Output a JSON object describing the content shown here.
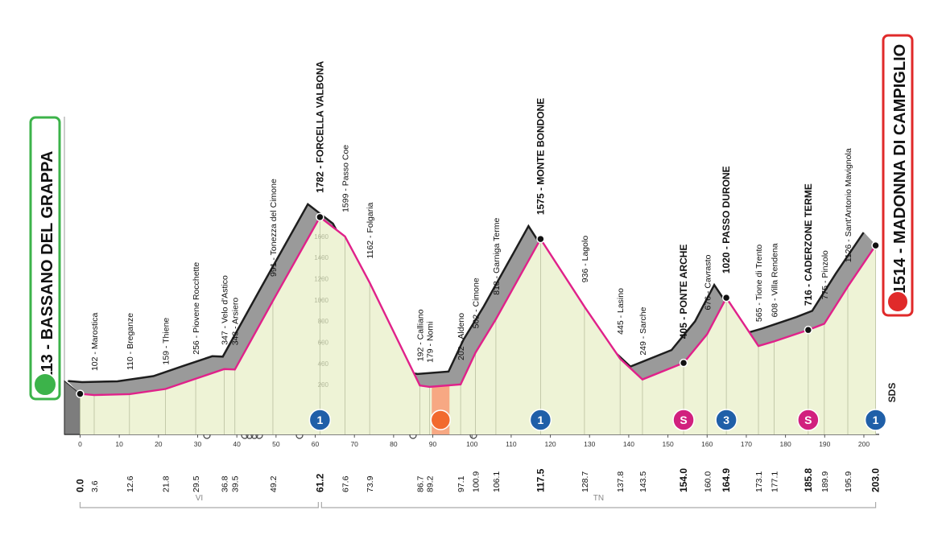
{
  "chart_data": {
    "type": "area",
    "x": [
      {
        "value": 0,
        "label": "0.0"
      },
      3.6,
      12.6,
      21.8,
      29.5,
      36.8,
      39.5,
      49.2,
      61.2,
      67.6,
      73.9,
      86.7,
      89.2,
      97.1,
      100.9,
      106.1,
      117.5,
      128.7,
      137.8,
      143.5,
      {
        "value": 154,
        "label": "154.0"
      },
      {
        "value": 160,
        "label": "160.0"
      },
      164.9,
      173.1,
      177.1,
      185.8,
      189.9,
      195.9,
      {
        "value": 203,
        "label": "203.0"
      }
    ],
    "values": [
      113,
      102,
      110,
      159,
      256,
      347,
      343,
      991,
      1782,
      1599,
      1162,
      192,
      179,
      202,
      502,
      818,
      1575,
      936,
      445,
      249,
      405,
      676,
      1020,
      565,
      608,
      716,
      775,
      1126,
      1514
    ],
    "value_labels": [
      "113 - BASSANO DEL GRAPPA",
      "102 - Marostica",
      "110 - Breganze",
      "159 - Thiene",
      "256 - Piovene Rocchette",
      "347 - Velo d'Astico",
      "343 - Arsiero",
      "991 - Tonezza del Cimone",
      "1782 - FORCELLA VALBONA",
      "1599 - Passo Coe",
      "1162 - Folgaria",
      "192 - Calliano",
      "179 - Nomi",
      "202 - Aldeno",
      "502 - Cimone",
      "818 - Garniga Terme",
      "1575 - MONTE BONDONE",
      "936 - Lagolo",
      "445 - Lasino",
      "249 - Sarche",
      "405 - PONTE ARCHE",
      "676 - Cavrasto",
      "1020 - PASSO DURONE",
      "565 - Tione di Trento",
      "608 - Villa Rendena",
      "716 - CADERZONE TERME",
      "775 - Pinzolo",
      "1126 - Sant'Antonio Mavignola",
      "1514 - MADONNA DI CAMPIGLIO"
    ],
    "bold": [
      0,
      8,
      16,
      20,
      22,
      25,
      28
    ],
    "color": "#e0218a",
    "xlim": [
      -4,
      203.5
    ],
    "ylim": [
      -270,
      2730
    ],
    "xticks": [
      0,
      10,
      20,
      30,
      40,
      50,
      60,
      70,
      80,
      90,
      100,
      110,
      120,
      130,
      140,
      150,
      160,
      170,
      180,
      190,
      200
    ],
    "yticks": [
      200,
      400,
      600,
      800,
      1000,
      1200,
      1400,
      1600
    ],
    "markers": [
      {
        "km": 61.2,
        "kind": "climb",
        "label": "1"
      },
      {
        "km": 92,
        "kind": "feed"
      },
      {
        "km": 117.5,
        "kind": "climb",
        "label": "1"
      },
      {
        "km": 154,
        "kind": "sprint",
        "label": "S"
      },
      {
        "km": 164.9,
        "kind": "climb",
        "label": "3"
      },
      {
        "km": 185.8,
        "kind": "sprint",
        "label": "S"
      },
      {
        "km": 203,
        "kind": "climb",
        "label": "1"
      }
    ],
    "regions": [
      {
        "name": "VI",
        "from": 0,
        "to": 61.2
      },
      {
        "name": "TN",
        "from": 61.2,
        "to": 203
      }
    ],
    "credit": "SDS"
  }
}
